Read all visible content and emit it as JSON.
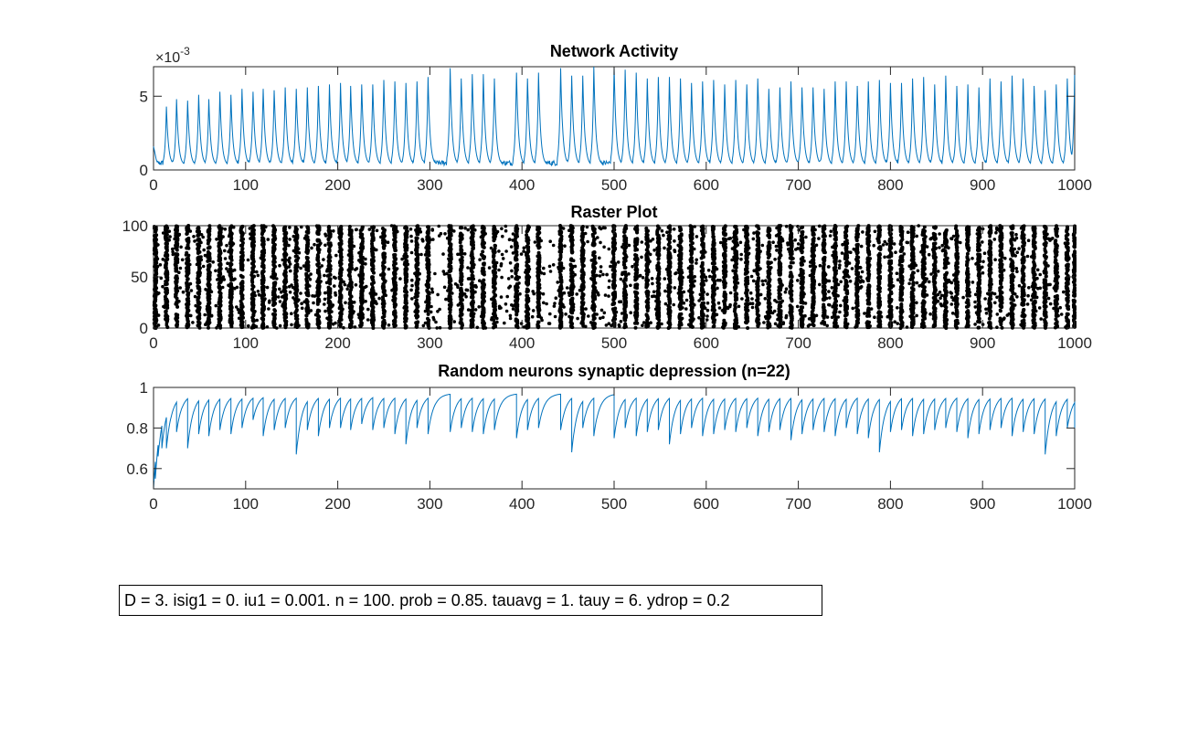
{
  "colors": {
    "line": "#0072BD",
    "raster": "#000000",
    "axis": "#262626"
  },
  "chart_data": [
    {
      "type": "line",
      "title": "Network Activity",
      "xlabel": "",
      "ylabel": "",
      "xlim": [
        0,
        1000
      ],
      "ylim": [
        0,
        7
      ],
      "xticks": [
        "0",
        "100",
        "200",
        "300",
        "400",
        "500",
        "600",
        "700",
        "800",
        "900",
        "1000"
      ],
      "yticks": [
        "0",
        "5"
      ],
      "ytick_values": [
        0,
        5
      ],
      "exponent_label": "×10",
      "exponent_power": "-3",
      "baseline": 0.3,
      "peaks": {
        "x": [
          14,
          25,
          37,
          49,
          60,
          72,
          84,
          96,
          108,
          119,
          131,
          143,
          155,
          167,
          179,
          191,
          203,
          214,
          226,
          238,
          250,
          262,
          274,
          286,
          298,
          322,
          334,
          346,
          358,
          370,
          394,
          406,
          418,
          442,
          454,
          466,
          478,
          500,
          512,
          524,
          536,
          548,
          560,
          572,
          584,
          596,
          608,
          620,
          632,
          644,
          656,
          668,
          680,
          692,
          704,
          716,
          728,
          740,
          752,
          764,
          776,
          788,
          800,
          812,
          824,
          836,
          848,
          860,
          872,
          884,
          896,
          908,
          920,
          932,
          944,
          956,
          968,
          980,
          992,
          1000
        ],
        "y": [
          4.3,
          4.8,
          4.7,
          5.1,
          4.8,
          5.3,
          5.1,
          5.5,
          5.3,
          5.5,
          5.4,
          5.6,
          5.5,
          5.6,
          5.7,
          5.8,
          5.9,
          5.7,
          5.8,
          5.8,
          6.1,
          6.0,
          5.9,
          6.0,
          6.3,
          6.9,
          6.2,
          6.5,
          6.5,
          6.2,
          6.6,
          6.2,
          6.6,
          6.9,
          6.4,
          6.4,
          7.0,
          7.1,
          6.8,
          6.6,
          6.2,
          6.3,
          6.3,
          6.2,
          5.9,
          6.0,
          6.1,
          5.8,
          6.1,
          5.8,
          6.2,
          5.5,
          5.6,
          6.0,
          5.6,
          5.6,
          5.5,
          6.0,
          6.0,
          5.7,
          6.0,
          6.1,
          5.9,
          5.9,
          6.2,
          6.3,
          5.8,
          6.4,
          5.7,
          5.8,
          5.6,
          6.2,
          6.0,
          6.4,
          6.2,
          5.7,
          5.4,
          5.8,
          6.2,
          6.8
        ]
      }
    },
    {
      "type": "scatter",
      "title": "Raster Plot",
      "xlabel": "",
      "ylabel": "",
      "xlim": [
        0,
        1000
      ],
      "ylim": [
        0,
        100
      ],
      "xticks": [
        "0",
        "100",
        "200",
        "300",
        "400",
        "500",
        "600",
        "700",
        "800",
        "900",
        "1000"
      ],
      "yticks": [
        "0",
        "50",
        "100"
      ],
      "ytick_values": [
        0,
        50,
        100
      ],
      "burst_times": [
        2,
        14,
        25,
        37,
        49,
        60,
        72,
        84,
        96,
        108,
        119,
        131,
        143,
        155,
        167,
        179,
        191,
        203,
        214,
        226,
        238,
        250,
        262,
        274,
        286,
        298,
        322,
        334,
        346,
        358,
        370,
        394,
        406,
        418,
        442,
        454,
        466,
        478,
        500,
        512,
        524,
        536,
        548,
        560,
        572,
        584,
        596,
        608,
        620,
        632,
        644,
        656,
        668,
        680,
        692,
        704,
        716,
        728,
        740,
        752,
        764,
        776,
        788,
        800,
        812,
        824,
        836,
        848,
        860,
        872,
        884,
        896,
        908,
        920,
        932,
        944,
        956,
        968,
        980,
        992,
        1000
      ],
      "neurons": 100
    },
    {
      "type": "line",
      "title": "Random neurons synaptic depression (n=22)",
      "xlabel": "",
      "ylabel": "",
      "xlim": [
        0,
        1000
      ],
      "ylim": [
        0.5,
        1
      ],
      "xticks": [
        "0",
        "100",
        "200",
        "300",
        "400",
        "500",
        "600",
        "700",
        "800",
        "900",
        "1000"
      ],
      "yticks": [
        "0.6",
        "0.8",
        "1"
      ],
      "ytick_values": [
        0.6,
        0.8,
        1.0
      ],
      "start_value": 0.5,
      "recovery_max": 0.97,
      "drop_events": {
        "x": [
          2,
          5,
          9,
          14,
          25,
          37,
          49,
          60,
          72,
          84,
          96,
          108,
          119,
          131,
          143,
          155,
          167,
          179,
          191,
          203,
          214,
          226,
          238,
          250,
          262,
          274,
          286,
          298,
          322,
          334,
          346,
          358,
          370,
          394,
          406,
          418,
          442,
          454,
          466,
          478,
          500,
          512,
          524,
          536,
          548,
          560,
          572,
          584,
          596,
          608,
          620,
          632,
          644,
          656,
          668,
          680,
          692,
          704,
          716,
          728,
          740,
          752,
          764,
          776,
          788,
          800,
          812,
          824,
          836,
          848,
          860,
          872,
          884,
          896,
          908,
          920,
          932,
          944,
          956,
          968,
          980,
          992,
          1000
        ],
        "min_y": [
          0.55,
          0.66,
          0.7,
          0.7,
          0.78,
          0.7,
          0.77,
          0.76,
          0.79,
          0.77,
          0.8,
          0.84,
          0.76,
          0.79,
          0.8,
          0.67,
          0.79,
          0.76,
          0.8,
          0.8,
          0.79,
          0.82,
          0.79,
          0.8,
          0.77,
          0.72,
          0.8,
          0.77,
          0.78,
          0.8,
          0.78,
          0.77,
          0.79,
          0.75,
          0.79,
          0.8,
          0.79,
          0.68,
          0.8,
          0.76,
          0.75,
          0.8,
          0.76,
          0.78,
          0.79,
          0.72,
          0.77,
          0.8,
          0.76,
          0.77,
          0.79,
          0.78,
          0.8,
          0.76,
          0.78,
          0.79,
          0.74,
          0.77,
          0.79,
          0.78,
          0.76,
          0.8,
          0.77,
          0.75,
          0.68,
          0.78,
          0.79,
          0.76,
          0.77,
          0.79,
          0.8,
          0.78,
          0.75,
          0.77,
          0.79,
          0.8,
          0.76,
          0.78,
          0.77,
          0.67,
          0.76,
          0.8,
          0.8
        ]
      }
    }
  ],
  "annotation": "D = 3. isig1 = 0. iu1 = 0.001. n = 100. prob = 0.85. tauavg = 1. tauy = 6. ydrop = 0.2"
}
